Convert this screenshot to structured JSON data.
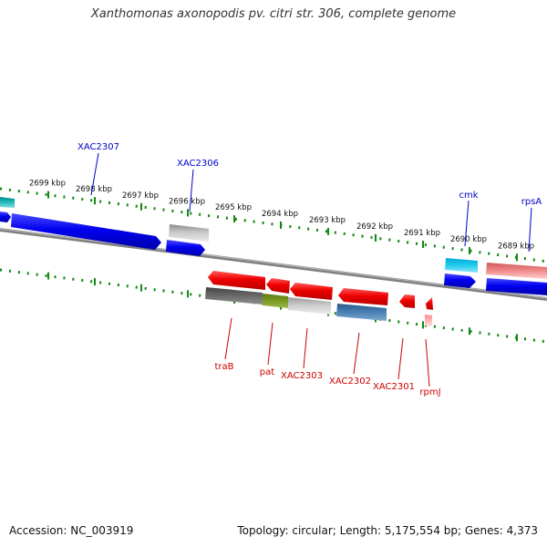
{
  "title": "Xanthomonas axonopodis pv. citri str. 306, complete genome",
  "footer": {
    "accession": "Accession: NC_003919",
    "topology": "Topology: circular; Length: 5,175,554 bp; Genes: 4,373"
  },
  "colors": {
    "forward_label": "#0000cc",
    "reverse_label": "#cc0000",
    "ruler": "#118811",
    "backbone": "#808080"
  },
  "ruler_labels": [
    "2699 kbp",
    "2698 kbp",
    "2697 kbp",
    "2696 kbp",
    "2695 kbp",
    "2694 kbp",
    "2693 kbp",
    "2692 kbp",
    "2691 kbp",
    "2690 kbp",
    "2689 kbp"
  ],
  "forward_genes": [
    {
      "label": "XAC2307",
      "color": "#0000ee"
    },
    {
      "label": "XAC2306",
      "color": "#0000ee"
    },
    {
      "label": "cmk",
      "color": "#0000ee"
    },
    {
      "label": "rpsA",
      "color": "#0000ee"
    }
  ],
  "reverse_genes": [
    {
      "label": "traB",
      "color": "#ee0000"
    },
    {
      "label": "pat",
      "color": "#ee0000"
    },
    {
      "label": "XAC2303",
      "color": "#ee0000"
    },
    {
      "label": "XAC2302",
      "color": "#ee0000"
    },
    {
      "label": "XAC2301",
      "color": "#ee0000"
    },
    {
      "label": "rpmJ",
      "color": "#ee0000"
    }
  ]
}
